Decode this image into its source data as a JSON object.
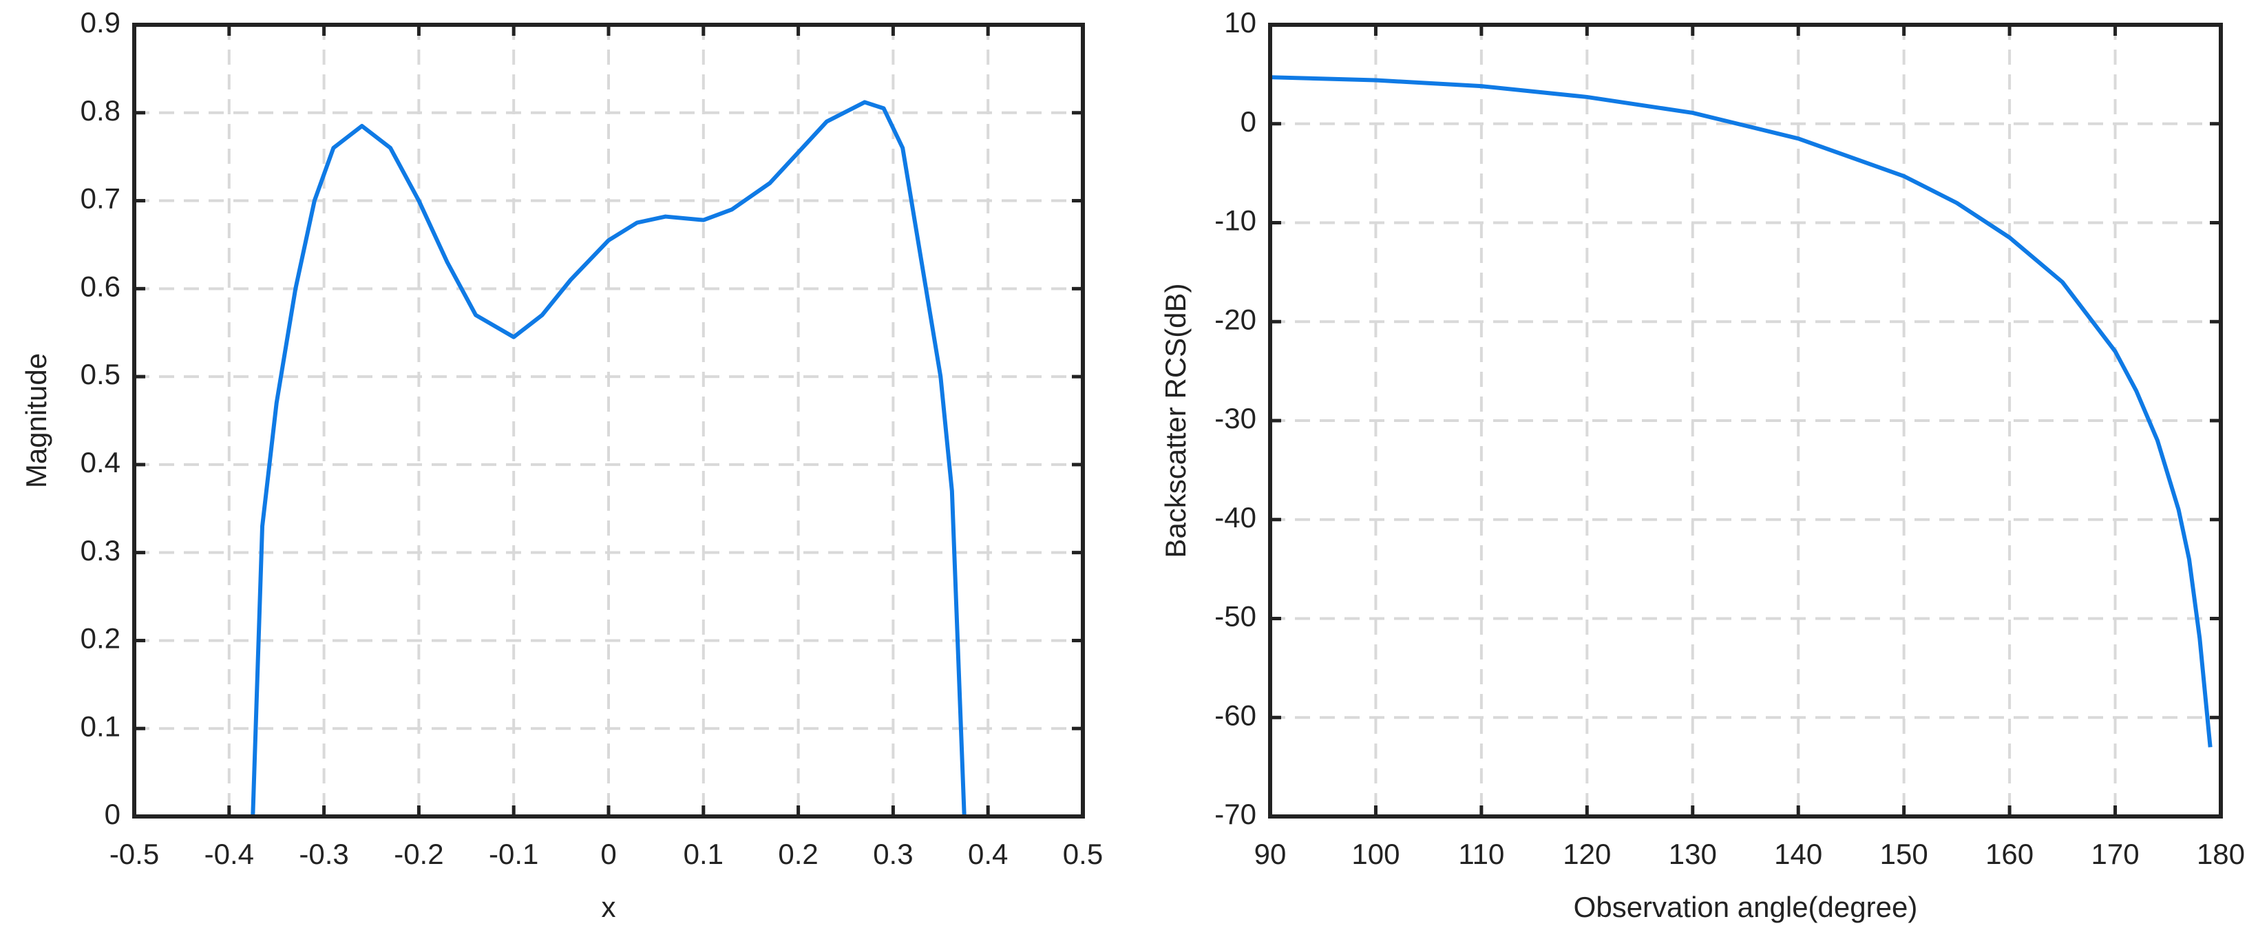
{
  "chart_data": [
    {
      "type": "line",
      "xlabel": "x",
      "ylabel": "Magnitude",
      "color": "#0f7ae5",
      "grid": true,
      "xlim": [
        -0.5,
        0.5
      ],
      "xticks": [
        -0.5,
        -0.4,
        -0.3,
        -0.2,
        -0.1,
        0,
        0.1,
        0.2,
        0.3,
        0.4,
        0.5
      ],
      "ylim": [
        0,
        0.9
      ],
      "yticks": [
        0,
        0.1,
        0.2,
        0.3,
        0.4,
        0.5,
        0.6,
        0.7,
        0.8,
        0.9
      ],
      "x": [
        -0.5,
        -0.375,
        -0.365,
        -0.35,
        -0.33,
        -0.31,
        -0.29,
        -0.26,
        -0.23,
        -0.2,
        -0.17,
        -0.14,
        -0.1,
        -0.07,
        -0.04,
        0,
        0.03,
        0.06,
        0.1,
        0.13,
        0.17,
        0.2,
        0.23,
        0.27,
        0.29,
        0.31,
        0.33,
        0.35,
        0.362,
        0.375,
        0.5
      ],
      "values": [
        0,
        0,
        0.33,
        0.47,
        0.6,
        0.7,
        0.76,
        0.785,
        0.76,
        0.7,
        0.63,
        0.57,
        0.545,
        0.57,
        0.61,
        0.655,
        0.675,
        0.682,
        0.678,
        0.69,
        0.72,
        0.755,
        0.79,
        0.812,
        0.805,
        0.76,
        0.63,
        0.5,
        0.37,
        0,
        0
      ]
    },
    {
      "type": "line",
      "xlabel": "Observation angle(degree)",
      "ylabel": "Backscatter RCS(dB)",
      "color": "#0f7ae5",
      "grid": true,
      "xlim": [
        90,
        180
      ],
      "xticks": [
        90,
        100,
        110,
        120,
        130,
        140,
        150,
        160,
        170,
        180
      ],
      "ylim": [
        -70,
        10
      ],
      "yticks": [
        -70,
        -60,
        -50,
        -40,
        -30,
        -20,
        -10,
        0,
        10
      ],
      "x": [
        90,
        100,
        110,
        120,
        130,
        140,
        150,
        155,
        160,
        165,
        170,
        172,
        174,
        176,
        177,
        178,
        179
      ],
      "values": [
        4.7,
        4.4,
        3.8,
        2.7,
        1.1,
        -1.5,
        -5.3,
        -8,
        -11.5,
        -16,
        -23,
        -27,
        -32,
        -39,
        -44,
        -52,
        -63
      ]
    }
  ]
}
